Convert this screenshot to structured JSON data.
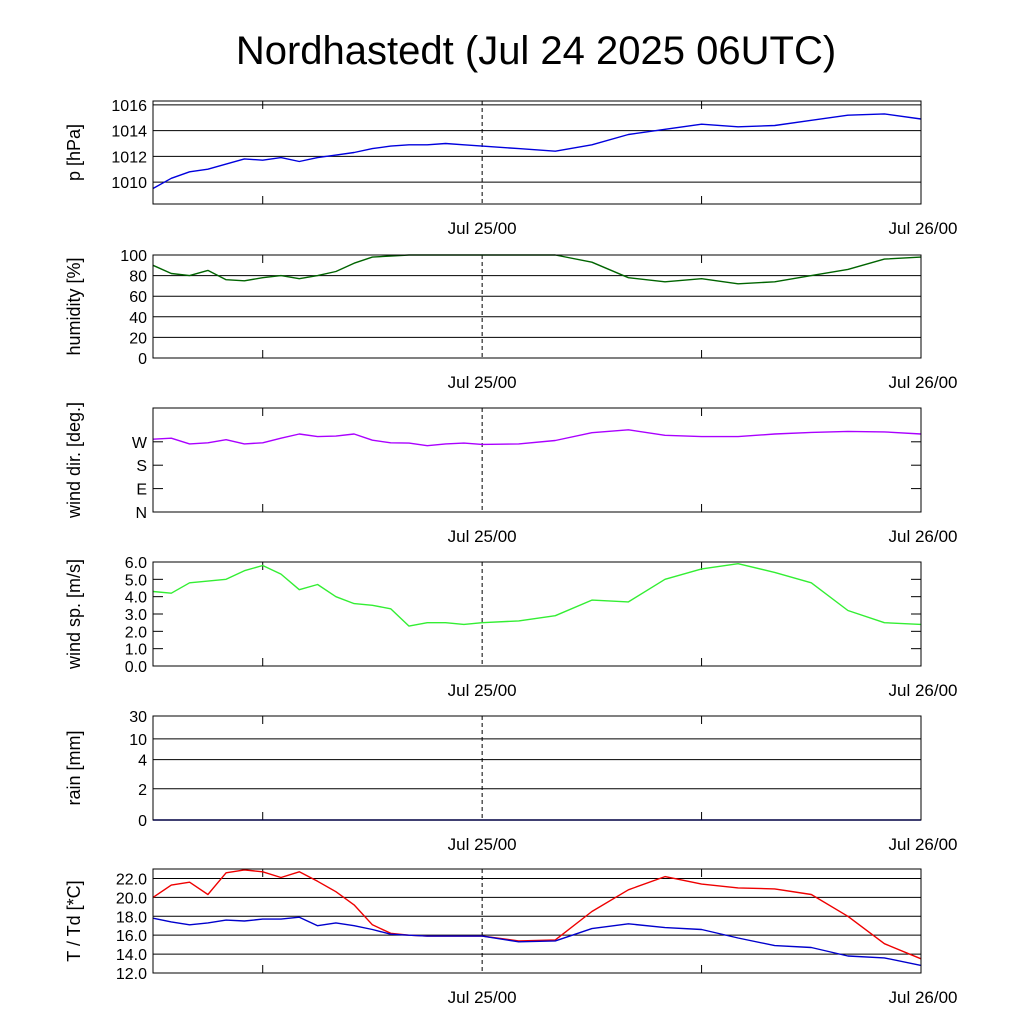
{
  "title": "Nordhastedt (Jul 24 2025 06UTC)",
  "x_axis": {
    "start": "2025-07-24 06:00 UTC",
    "end": "2025-07-26 00:00 UTC",
    "tick_labels": [
      "Jul 25/00",
      "Jul 26/00"
    ],
    "minor_tick_labels": []
  },
  "chart_data": [
    {
      "type": "line",
      "ylabel": "p [hPa]",
      "ylim": [
        1008.3,
        1016.3
      ],
      "yticks": [
        1010,
        1012,
        1014,
        1016
      ],
      "ytick_labels": [
        "1010",
        "1012",
        "1014",
        "1016"
      ],
      "grid": true,
      "series": [
        {
          "color": "#0000dd",
          "x": [
            "Jul 24 06:00",
            "Jul 24 07:00",
            "Jul 24 08:00",
            "Jul 24 09:00",
            "Jul 24 10:00",
            "Jul 24 11:00",
            "Jul 24 12:00",
            "Jul 24 13:00",
            "Jul 24 14:00",
            "Jul 24 15:00",
            "Jul 24 16:00",
            "Jul 24 17:00",
            "Jul 24 18:00",
            "Jul 24 19:00",
            "Jul 24 20:00",
            "Jul 24 21:00",
            "Jul 24 22:00",
            "Jul 24 23:00",
            "Jul 25 00:00",
            "Jul 25 02:00",
            "Jul 25 04:00",
            "Jul 25 06:00",
            "Jul 25 08:00",
            "Jul 25 10:00",
            "Jul 25 12:00",
            "Jul 25 14:00",
            "Jul 25 16:00",
            "Jul 25 18:00",
            "Jul 25 20:00",
            "Jul 25 22:00",
            "Jul 26 00:00"
          ],
          "values": [
            1009.5,
            1010.3,
            1010.8,
            1011.0,
            1011.4,
            1011.8,
            1011.7,
            1011.9,
            1011.6,
            1011.9,
            1012.1,
            1012.3,
            1012.6,
            1012.8,
            1012.9,
            1012.9,
            1013.0,
            1012.9,
            1012.8,
            1012.6,
            1012.4,
            1012.9,
            1013.7,
            1014.1,
            1014.5,
            1014.3,
            1014.4,
            1014.8,
            1015.2,
            1015.3,
            1014.9
          ]
        }
      ]
    },
    {
      "type": "line",
      "ylabel": "humidity [%]",
      "ylim": [
        0,
        100
      ],
      "yticks": [
        0,
        20,
        40,
        60,
        80,
        100
      ],
      "ytick_labels": [
        "0",
        "20",
        "40",
        "60",
        "80",
        "100"
      ],
      "grid": true,
      "series": [
        {
          "color": "#006400",
          "x": [
            "Jul 24 06:00",
            "Jul 24 07:00",
            "Jul 24 08:00",
            "Jul 24 09:00",
            "Jul 24 10:00",
            "Jul 24 11:00",
            "Jul 24 12:00",
            "Jul 24 13:00",
            "Jul 24 14:00",
            "Jul 24 15:00",
            "Jul 24 16:00",
            "Jul 24 17:00",
            "Jul 24 18:00",
            "Jul 24 19:00",
            "Jul 24 20:00",
            "Jul 24 21:00",
            "Jul 24 22:00",
            "Jul 24 23:00",
            "Jul 25 00:00",
            "Jul 25 02:00",
            "Jul 25 04:00",
            "Jul 25 06:00",
            "Jul 25 08:00",
            "Jul 25 10:00",
            "Jul 25 12:00",
            "Jul 25 14:00",
            "Jul 25 16:00",
            "Jul 25 18:00",
            "Jul 25 20:00",
            "Jul 25 22:00",
            "Jul 26 00:00"
          ],
          "values": [
            90,
            82,
            80,
            85,
            76,
            75,
            78,
            80,
            77,
            80,
            84,
            92,
            98,
            99,
            100,
            100,
            100,
            100,
            100,
            100,
            100,
            93,
            78,
            74,
            77,
            72,
            74,
            80,
            86,
            96,
            98
          ]
        }
      ]
    },
    {
      "type": "line",
      "ylabel": "wind dir. [deg.]",
      "ylim": [
        0,
        400
      ],
      "yticks": [
        0,
        90,
        180,
        270
      ],
      "ytick_labels": [
        "N",
        "E",
        "S",
        "W"
      ],
      "grid": false,
      "series": [
        {
          "color": "#aa00ff",
          "x": [
            "Jul 24 06:00",
            "Jul 24 07:00",
            "Jul 24 08:00",
            "Jul 24 09:00",
            "Jul 24 10:00",
            "Jul 24 11:00",
            "Jul 24 12:00",
            "Jul 24 13:00",
            "Jul 24 14:00",
            "Jul 24 15:00",
            "Jul 24 16:00",
            "Jul 24 17:00",
            "Jul 24 18:00",
            "Jul 24 19:00",
            "Jul 24 20:00",
            "Jul 24 21:00",
            "Jul 24 22:00",
            "Jul 24 23:00",
            "Jul 25 00:00",
            "Jul 25 02:00",
            "Jul 25 04:00",
            "Jul 25 06:00",
            "Jul 25 08:00",
            "Jul 25 10:00",
            "Jul 25 12:00",
            "Jul 25 14:00",
            "Jul 25 16:00",
            "Jul 25 18:00",
            "Jul 25 20:00",
            "Jul 25 22:00",
            "Jul 26 00:00"
          ],
          "values": [
            280,
            284,
            262,
            266,
            278,
            262,
            266,
            284,
            300,
            290,
            292,
            300,
            276,
            266,
            265,
            255,
            262,
            265,
            260,
            262,
            275,
            305,
            316,
            295,
            290,
            290,
            300,
            306,
            310,
            308,
            300
          ]
        }
      ]
    },
    {
      "type": "line",
      "ylabel": "wind sp. [m/s]",
      "ylim": [
        0,
        6.0
      ],
      "yticks": [
        0,
        1,
        2,
        3,
        4,
        5,
        6
      ],
      "ytick_labels": [
        "0.0",
        "1.0",
        "2.0",
        "3.0",
        "4.0",
        "5.0",
        "6.0"
      ],
      "grid": false,
      "series": [
        {
          "color": "#33ee33",
          "x": [
            "Jul 24 06:00",
            "Jul 24 07:00",
            "Jul 24 08:00",
            "Jul 24 09:00",
            "Jul 24 10:00",
            "Jul 24 11:00",
            "Jul 24 12:00",
            "Jul 24 13:00",
            "Jul 24 14:00",
            "Jul 24 15:00",
            "Jul 24 16:00",
            "Jul 24 17:00",
            "Jul 24 18:00",
            "Jul 24 19:00",
            "Jul 24 20:00",
            "Jul 24 21:00",
            "Jul 24 22:00",
            "Jul 24 23:00",
            "Jul 25 00:00",
            "Jul 25 02:00",
            "Jul 25 04:00",
            "Jul 25 06:00",
            "Jul 25 08:00",
            "Jul 25 10:00",
            "Jul 25 12:00",
            "Jul 25 14:00",
            "Jul 25 16:00",
            "Jul 25 18:00",
            "Jul 25 20:00",
            "Jul 25 22:00",
            "Jul 26 00:00"
          ],
          "values": [
            4.3,
            4.2,
            4.8,
            4.9,
            5.0,
            5.5,
            5.8,
            5.3,
            4.4,
            4.7,
            4.0,
            3.6,
            3.5,
            3.3,
            2.3,
            2.5,
            2.5,
            2.4,
            2.5,
            2.6,
            2.9,
            3.8,
            3.7,
            5.0,
            5.6,
            5.9,
            5.4,
            4.8,
            3.2,
            2.5,
            2.4
          ]
        }
      ]
    },
    {
      "type": "line",
      "ylabel": "rain [mm]",
      "ylim": [
        0,
        30
      ],
      "yticks": [
        0,
        2,
        4,
        10,
        30
      ],
      "ytick_labels": [
        "0",
        "2",
        "4",
        "10",
        "30"
      ],
      "grid": true,
      "series": [
        {
          "color": "#0000cc",
          "x": [
            "Jul 24 06:00",
            "Jul 26 00:00"
          ],
          "values": [
            0,
            0
          ]
        }
      ]
    },
    {
      "type": "line",
      "ylabel": "T / Td [*C]",
      "ylim": [
        12.0,
        23.0
      ],
      "yticks": [
        12,
        14,
        16,
        18,
        20,
        22
      ],
      "ytick_labels": [
        "12.0",
        "14.0",
        "16.0",
        "18.0",
        "20.0",
        "22.0"
      ],
      "grid": true,
      "series": [
        {
          "color": "#ee0000",
          "x": [
            "Jul 24 06:00",
            "Jul 24 07:00",
            "Jul 24 08:00",
            "Jul 24 09:00",
            "Jul 24 10:00",
            "Jul 24 11:00",
            "Jul 24 12:00",
            "Jul 24 13:00",
            "Jul 24 14:00",
            "Jul 24 15:00",
            "Jul 24 16:00",
            "Jul 24 17:00",
            "Jul 24 18:00",
            "Jul 24 19:00",
            "Jul 24 20:00",
            "Jul 24 21:00",
            "Jul 24 22:00",
            "Jul 24 23:00",
            "Jul 25 00:00",
            "Jul 25 02:00",
            "Jul 25 04:00",
            "Jul 25 06:00",
            "Jul 25 08:00",
            "Jul 25 10:00",
            "Jul 25 12:00",
            "Jul 25 14:00",
            "Jul 25 16:00",
            "Jul 25 18:00",
            "Jul 25 20:00",
            "Jul 25 22:00",
            "Jul 26 00:00"
          ],
          "values": [
            20.0,
            21.3,
            21.6,
            20.3,
            22.6,
            22.9,
            22.7,
            22.1,
            22.7,
            21.7,
            20.6,
            19.2,
            17.1,
            16.2,
            16.0,
            15.9,
            15.9,
            15.9,
            15.9,
            15.4,
            15.5,
            18.5,
            20.8,
            22.2,
            21.4,
            21.0,
            20.9,
            20.3,
            18.0,
            15.1,
            13.5
          ]
        },
        {
          "color": "#0000cc",
          "x": [
            "Jul 24 06:00",
            "Jul 24 07:00",
            "Jul 24 08:00",
            "Jul 24 09:00",
            "Jul 24 10:00",
            "Jul 24 11:00",
            "Jul 24 12:00",
            "Jul 24 13:00",
            "Jul 24 14:00",
            "Jul 24 15:00",
            "Jul 24 16:00",
            "Jul 24 17:00",
            "Jul 24 18:00",
            "Jul 24 19:00",
            "Jul 24 20:00",
            "Jul 24 21:00",
            "Jul 24 22:00",
            "Jul 24 23:00",
            "Jul 25 00:00",
            "Jul 25 02:00",
            "Jul 25 04:00",
            "Jul 25 06:00",
            "Jul 25 08:00",
            "Jul 25 10:00",
            "Jul 25 12:00",
            "Jul 25 14:00",
            "Jul 25 16:00",
            "Jul 25 18:00",
            "Jul 25 20:00",
            "Jul 25 22:00",
            "Jul 26 00:00"
          ],
          "values": [
            17.8,
            17.4,
            17.1,
            17.3,
            17.6,
            17.5,
            17.7,
            17.7,
            17.9,
            17.0,
            17.3,
            17.0,
            16.6,
            16.1,
            16.0,
            15.9,
            15.9,
            15.9,
            15.9,
            15.3,
            15.4,
            16.7,
            17.2,
            16.8,
            16.6,
            15.7,
            14.9,
            14.7,
            13.8,
            13.6,
            12.8
          ]
        }
      ]
    }
  ]
}
